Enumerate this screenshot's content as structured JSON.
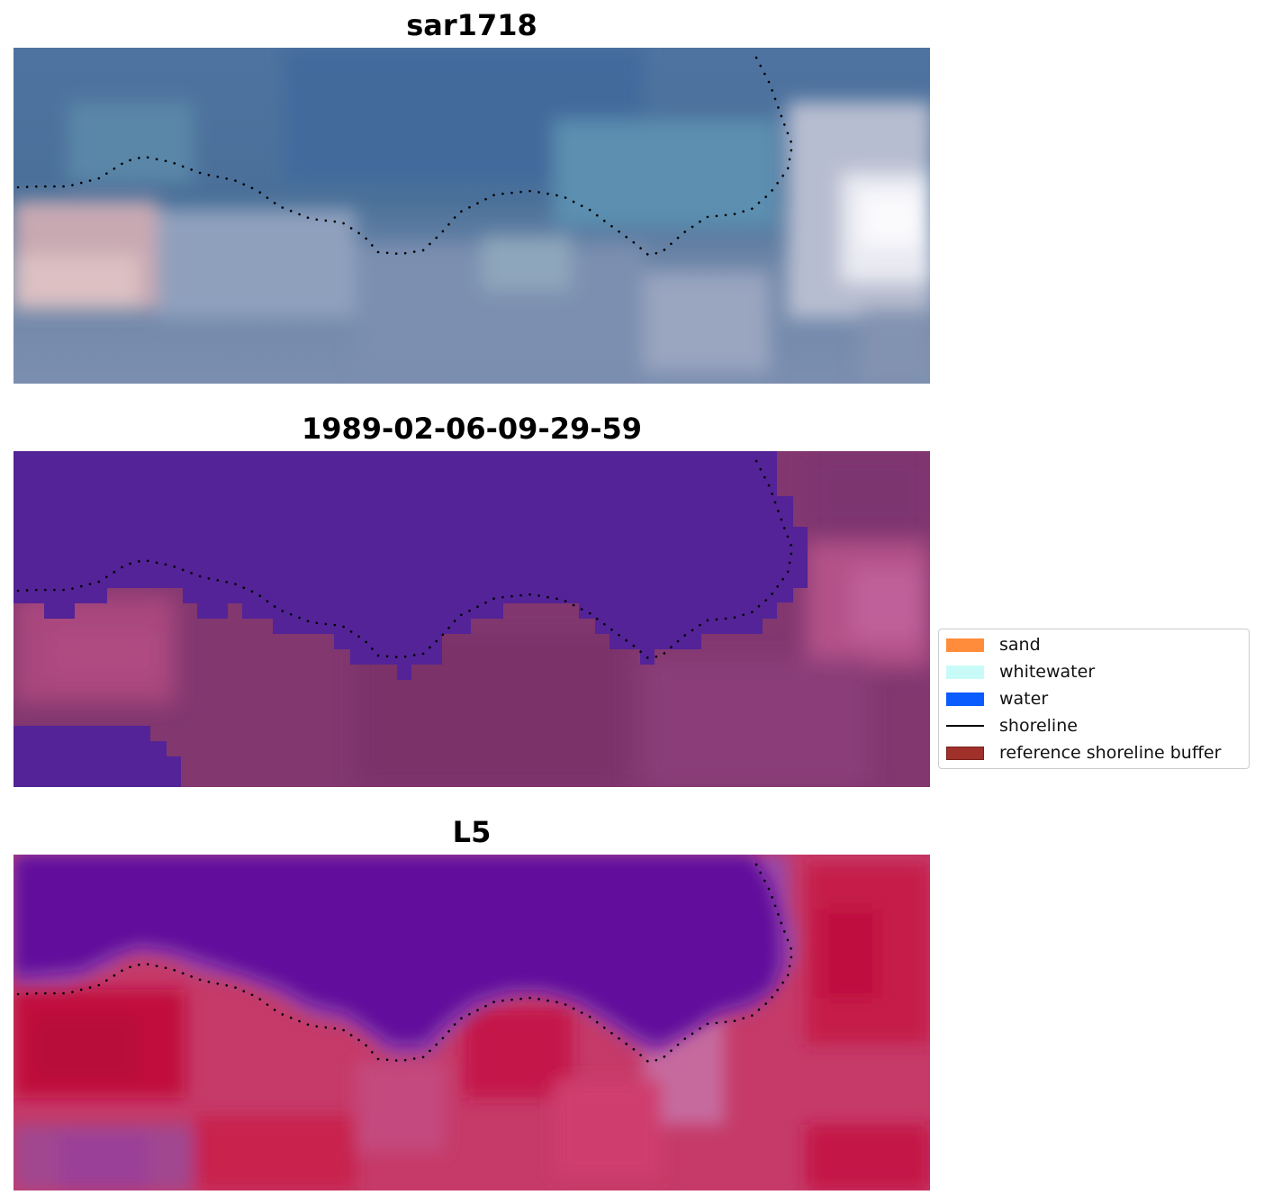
{
  "panels": [
    {
      "title": "sar1718",
      "kind": "rgb",
      "base_color": "#5278a0",
      "regions": [
        {
          "fill": "#4a6f9d",
          "desc": "upper water"
        },
        {
          "fill": "#c3a9b4",
          "desc": "left sand patch"
        },
        {
          "fill": "#f1f1f7",
          "desc": "right bright whitewater"
        }
      ]
    },
    {
      "title": "1989-02-06-09-29-59",
      "kind": "classified",
      "base_color": "#7f3570",
      "water_color": "#522396"
    },
    {
      "title": "L5",
      "kind": "index",
      "base_color": "#c23a6a",
      "water_color": "#620a9c"
    }
  ],
  "legend": {
    "items": [
      {
        "label": "sand",
        "color": "#ff8c3a",
        "kind": "patch"
      },
      {
        "label": "whitewater",
        "color": "#c8fbf8",
        "kind": "patch"
      },
      {
        "label": "water",
        "color": "#0a5cff",
        "kind": "patch"
      },
      {
        "label": "shoreline",
        "color": "#000000",
        "kind": "line"
      },
      {
        "label": "reference shoreline buffer",
        "color": "#a0302a",
        "kind": "patch"
      }
    ]
  }
}
